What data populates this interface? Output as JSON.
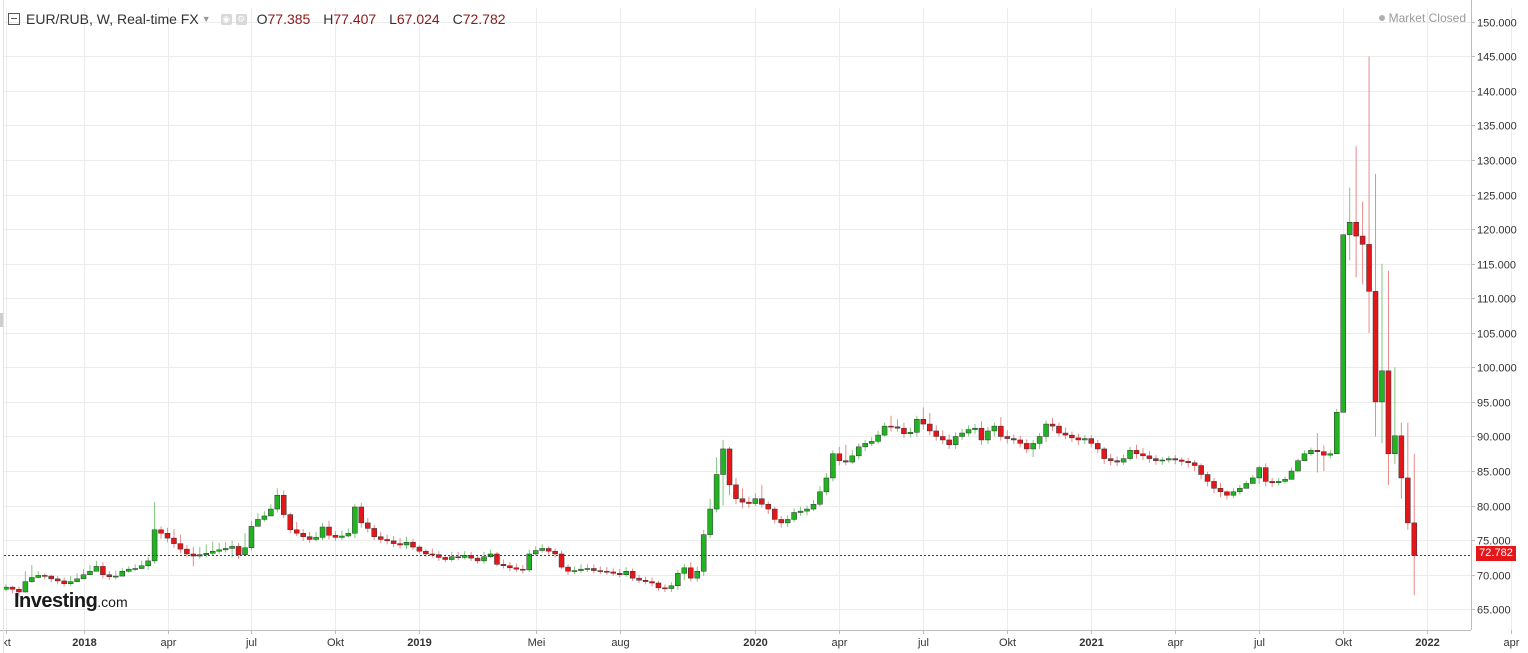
{
  "header": {
    "symbol": "EUR/RUB, W, Real-time FX",
    "ohlc": [
      {
        "label": "O",
        "value": "77.385"
      },
      {
        "label": "H",
        "value": "77.407"
      },
      {
        "label": "L",
        "value": "67.024"
      },
      {
        "label": "C",
        "value": "72.782"
      }
    ],
    "market_status": "Market Closed"
  },
  "logo": {
    "brand": "Investing",
    "tld": ".com"
  },
  "last_price_label": "72.782",
  "colors": {
    "up": "#22b322",
    "down": "#e3161a",
    "grid": "#ececec",
    "price_line": "#c80000",
    "axis": "#bdbdbd"
  },
  "chart_data": {
    "type": "candlestick",
    "title": "EUR/RUB, W, Real-time FX",
    "xlabel": "",
    "ylabel": "",
    "ylim": [
      62,
      152
    ],
    "y_ticks": [
      "65.000",
      "70.000",
      "75.000",
      "80.000",
      "85.000",
      "90.000",
      "95.000",
      "100.000",
      "105.000",
      "110.000",
      "115.000",
      "120.000",
      "125.000",
      "130.000",
      "135.000",
      "140.000",
      "145.000",
      "150.000"
    ],
    "x_ticks": [
      {
        "label": "kt",
        "week": 0,
        "bold": false
      },
      {
        "label": "2018",
        "week": 12,
        "bold": true
      },
      {
        "label": "apr",
        "week": 25,
        "bold": false
      },
      {
        "label": "jul",
        "week": 38,
        "bold": false
      },
      {
        "label": "Okt",
        "week": 51,
        "bold": false
      },
      {
        "label": "2019",
        "week": 64,
        "bold": true
      },
      {
        "label": "Mei",
        "week": 82,
        "bold": false
      },
      {
        "label": "aug",
        "week": 95,
        "bold": false
      },
      {
        "label": "2020",
        "week": 116,
        "bold": true
      },
      {
        "label": "apr",
        "week": 129,
        "bold": false
      },
      {
        "label": "jul",
        "week": 142,
        "bold": false
      },
      {
        "label": "Okt",
        "week": 155,
        "bold": false
      },
      {
        "label": "2021",
        "week": 168,
        "bold": true
      },
      {
        "label": "apr",
        "week": 181,
        "bold": false
      },
      {
        "label": "jul",
        "week": 194,
        "bold": false
      },
      {
        "label": "Okt",
        "week": 207,
        "bold": false
      },
      {
        "label": "2022",
        "week": 220,
        "bold": true
      },
      {
        "label": "apr",
        "week": 233,
        "bold": false
      }
    ],
    "last_close": 72.782,
    "closes": [
      68.2,
      67.9,
      67.5,
      69.0,
      69.6,
      69.9,
      69.8,
      69.4,
      69.1,
      68.7,
      69.0,
      69.4,
      70.0,
      70.5,
      71.2,
      70.0,
      69.7,
      69.8,
      70.5,
      70.8,
      70.9,
      71.3,
      72.0,
      76.5,
      76.0,
      75.3,
      74.5,
      73.7,
      73.0,
      72.7,
      72.9,
      73.1,
      73.4,
      73.6,
      73.8,
      74.1,
      72.9,
      73.9,
      77.0,
      78.0,
      78.5,
      79.5,
      81.5,
      78.7,
      76.5,
      76.0,
      75.5,
      75.1,
      75.4,
      76.9,
      75.7,
      75.4,
      75.6,
      76.0,
      79.8,
      77.5,
      76.7,
      75.5,
      75.1,
      74.9,
      74.5,
      74.3,
      74.7,
      74.0,
      73.4,
      73.0,
      72.9,
      72.5,
      72.2,
      72.6,
      72.5,
      72.8,
      72.4,
      72.0,
      72.6,
      73.0,
      71.5,
      71.3,
      71.0,
      70.8,
      70.7,
      73.0,
      73.5,
      73.8,
      73.4,
      73.0,
      71.1,
      70.5,
      70.6,
      70.8,
      70.9,
      70.6,
      70.5,
      70.4,
      70.2,
      70.0,
      70.5,
      69.5,
      69.2,
      69.0,
      68.8,
      68.1,
      68.0,
      68.4,
      70.2,
      71.0,
      69.5,
      70.5,
      75.8,
      79.5,
      84.5,
      88.2,
      83.0,
      81.0,
      80.5,
      80.3,
      81.0,
      80.2,
      79.5,
      78.0,
      77.5,
      78.0,
      79.0,
      79.2,
      79.5,
      80.2,
      82.0,
      84.0,
      87.5,
      86.5,
      86.3,
      87.2,
      88.5,
      89.0,
      89.3,
      90.2,
      91.5,
      91.4,
      91.2,
      90.4,
      90.6,
      92.5,
      91.8,
      90.8,
      90.0,
      89.5,
      88.8,
      90.0,
      90.5,
      91.0,
      91.2,
      89.5,
      90.8,
      91.5,
      90.0,
      89.7,
      89.5,
      89.0,
      88.2,
      89.0,
      90.0,
      91.8,
      91.5,
      90.5,
      90.2,
      89.8,
      89.5,
      89.7,
      89.0,
      88.2,
      86.8,
      86.5,
      86.3,
      86.8,
      88.0,
      87.5,
      87.2,
      86.8,
      86.5,
      86.6,
      86.8,
      86.6,
      86.4,
      86.2,
      85.8,
      84.5,
      83.5,
      82.5,
      82.0,
      81.5,
      82.0,
      82.5,
      83.2,
      84.0,
      85.5,
      83.5,
      83.3,
      83.5,
      83.8,
      85.0,
      86.5,
      87.5,
      88.0,
      87.8,
      87.3,
      87.5,
      93.5,
      119.2,
      121.0,
      119.0,
      117.8,
      111.0,
      95.0,
      99.5,
      87.5,
      90.1,
      84.0,
      77.5,
      72.782
    ],
    "highs": [
      68.6,
      68.4,
      68.3,
      70.5,
      71.4,
      70.5,
      70.2,
      70.0,
      69.8,
      69.6,
      69.8,
      70.2,
      70.8,
      71.4,
      72.0,
      71.8,
      70.5,
      70.6,
      71.0,
      71.2,
      71.5,
      72.0,
      72.6,
      80.5,
      77.0,
      76.8,
      76.6,
      75.8,
      74.3,
      74.0,
      74.0,
      74.4,
      74.8,
      74.6,
      74.7,
      74.9,
      74.6,
      76.0,
      77.8,
      78.9,
      79.2,
      80.2,
      82.5,
      82.2,
      79.0,
      77.6,
      76.6,
      76.2,
      76.2,
      77.5,
      77.8,
      76.3,
      76.4,
      76.7,
      80.2,
      80.4,
      78.2,
      77.2,
      76.2,
      75.8,
      75.6,
      75.3,
      75.5,
      75.2,
      74.3,
      73.7,
      73.8,
      73.4,
      72.9,
      73.3,
      73.3,
      73.4,
      73.3,
      72.9,
      73.3,
      73.6,
      73.3,
      72.2,
      71.8,
      71.6,
      71.4,
      73.6,
      74.1,
      74.4,
      74.1,
      73.8,
      73.5,
      71.5,
      71.2,
      71.5,
      71.5,
      71.5,
      71.2,
      71.1,
      70.9,
      70.8,
      71.1,
      70.9,
      70.0,
      69.7,
      69.6,
      69.1,
      68.6,
      68.9,
      70.7,
      71.6,
      71.8,
      71.2,
      76.5,
      81.0,
      87.0,
      89.5,
      88.5,
      84.0,
      82.5,
      81.3,
      81.8,
      83.0,
      80.6,
      79.8,
      78.5,
      78.6,
      79.6,
      79.8,
      80.0,
      80.8,
      82.8,
      84.7,
      88.0,
      88.5,
      88.8,
      88.0,
      89.0,
      89.5,
      89.9,
      90.8,
      92.0,
      93.0,
      92.5,
      92.0,
      91.3,
      93.0,
      94.2,
      93.4,
      91.6,
      90.9,
      90.3,
      90.6,
      91.1,
      91.6,
      91.8,
      92.2,
      91.4,
      92.0,
      92.8,
      90.9,
      90.3,
      90.1,
      89.6,
      89.5,
      90.5,
      92.3,
      92.7,
      92.0,
      91.3,
      90.7,
      90.4,
      90.2,
      90.2,
      89.5,
      88.5,
      87.5,
      87.1,
      87.4,
      88.5,
      88.8,
      88.3,
      87.9,
      87.3,
      87.0,
      87.2,
      87.3,
      87.0,
      86.9,
      86.6,
      86.1,
      84.9,
      84.0,
      83.3,
      82.2,
      82.5,
      83.0,
      83.6,
      84.4,
      85.8,
      86.1,
      84.0,
      84.0,
      84.2,
      85.5,
      86.8,
      88.0,
      88.4,
      90.5,
      88.7,
      88.0,
      94.0,
      99.0,
      126.0,
      132.0,
      124.0,
      145.0,
      128.0,
      115.0,
      114.0,
      100.0,
      92.0,
      92.0,
      87.5,
      77.407
    ],
    "lows": [
      67.6,
      67.3,
      66.9,
      67.4,
      68.8,
      69.5,
      69.3,
      68.9,
      68.6,
      68.3,
      68.4,
      68.9,
      69.5,
      70.0,
      70.6,
      69.5,
      69.2,
      69.3,
      69.9,
      70.3,
      70.5,
      70.8,
      70.7,
      71.6,
      75.2,
      74.7,
      73.9,
      73.1,
      72.6,
      71.2,
      72.3,
      72.5,
      72.8,
      73.0,
      73.2,
      72.5,
      72.3,
      73.3,
      73.5,
      77.4,
      77.7,
      78.8,
      79.0,
      78.2,
      76.0,
      75.6,
      74.9,
      74.6,
      74.8,
      75.0,
      75.1,
      74.9,
      75.0,
      75.4,
      75.3,
      76.8,
      76.1,
      75.0,
      74.6,
      74.4,
      74.0,
      73.8,
      73.7,
      73.6,
      73.0,
      72.6,
      72.5,
      72.0,
      71.8,
      71.9,
      72.1,
      72.2,
      72.0,
      71.6,
      71.6,
      72.4,
      71.2,
      70.9,
      70.5,
      70.4,
      70.2,
      70.4,
      72.8,
      73.2,
      72.9,
      72.5,
      70.8,
      70.0,
      70.1,
      70.3,
      70.4,
      70.2,
      70.1,
      70.0,
      69.8,
      69.6,
      69.7,
      69.1,
      68.8,
      68.6,
      68.3,
      67.7,
      67.5,
      67.5,
      67.8,
      69.2,
      69.0,
      69.0,
      69.8,
      75.3,
      79.0,
      80.0,
      81.5,
      80.2,
      79.6,
      79.7,
      79.9,
      79.7,
      78.8,
      77.4,
      76.8,
      76.9,
      77.6,
      78.5,
      78.6,
      79.2,
      79.9,
      81.5,
      83.5,
      85.8,
      85.8,
      86.0,
      86.7,
      87.9,
      88.6,
      88.9,
      90.0,
      90.7,
      90.7,
      89.8,
      89.9,
      90.0,
      91.0,
      90.2,
      89.4,
      88.9,
      88.2,
      88.2,
      89.5,
      90.0,
      90.4,
      88.8,
      88.9,
      90.0,
      89.4,
      89.0,
      88.9,
      88.4,
      87.6,
      87.0,
      88.2,
      89.2,
      90.8,
      90.0,
      89.6,
      89.2,
      88.8,
      88.9,
      88.4,
      87.6,
      86.0,
      85.8,
      85.7,
      85.9,
      86.5,
      86.8,
      86.6,
      86.2,
      85.9,
      85.9,
      86.2,
      86.0,
      85.8,
      85.5,
      85.0,
      83.8,
      82.8,
      81.8,
      81.2,
      80.9,
      81.1,
      81.6,
      82.5,
      83.4,
      83.1,
      82.8,
      82.7,
      82.9,
      83.2,
      84.2,
      85.7,
      86.8,
      87.2,
      84.8,
      85.0,
      86.8,
      92.5,
      110.0,
      115.5,
      113.0,
      112.0,
      105.0,
      90.0,
      89.0,
      83.0,
      86.0,
      81.0,
      76.5,
      67.024
    ]
  }
}
